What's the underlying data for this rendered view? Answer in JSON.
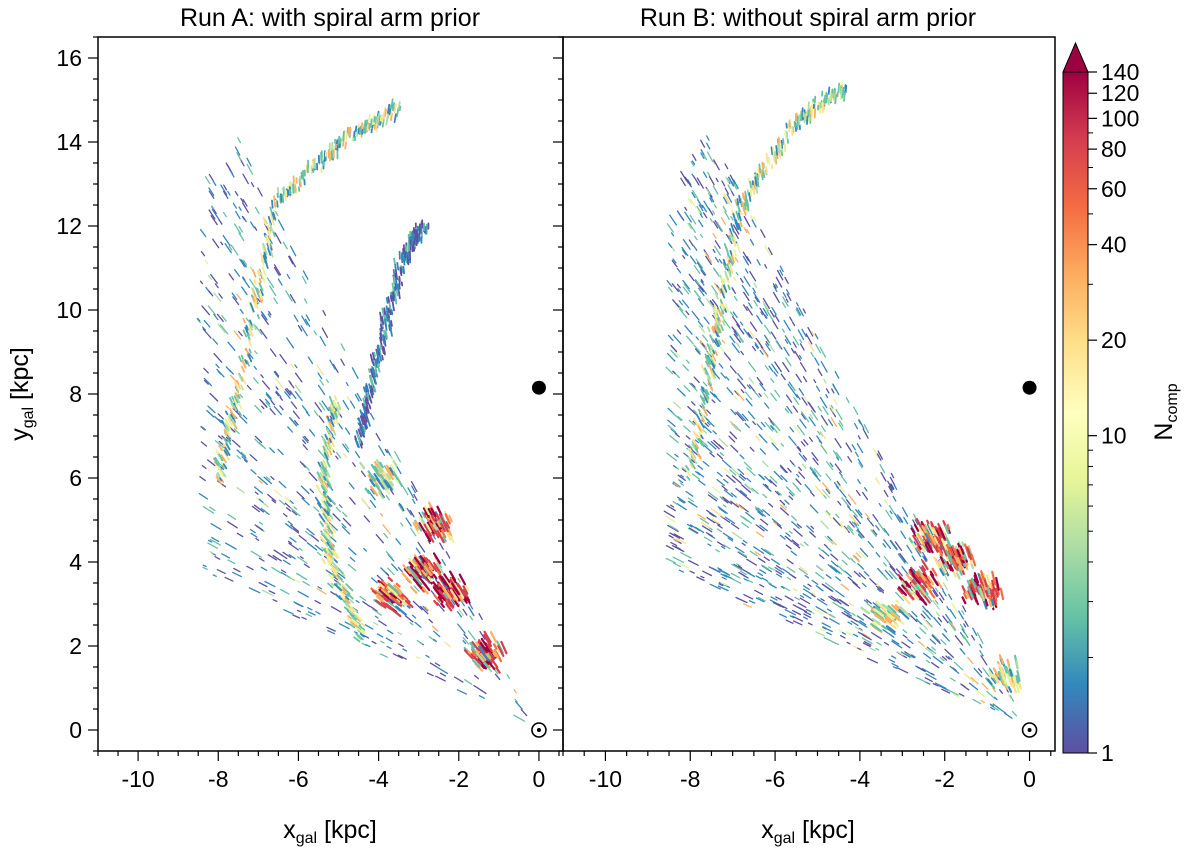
{
  "chart_data": [
    {
      "type": "heatmap",
      "title": "Run A: with spiral arm prior",
      "xlabel_main": "x",
      "xlabel_sub": "gal",
      "xlabel_unit": "[kpc]",
      "ylabel_main": "y",
      "ylabel_sub": "gal",
      "ylabel_unit": "[kpc]",
      "xlim": [
        -11,
        0.6
      ],
      "ylim": [
        -0.5,
        16.5
      ],
      "xticks": [
        -10,
        -8,
        -6,
        -4,
        -2,
        0
      ],
      "xtick_labels": [
        "-10",
        "-8",
        "-6",
        "-4",
        "-2",
        "0"
      ],
      "yticks": [
        0,
        2,
        4,
        6,
        8,
        10,
        12,
        14,
        16
      ],
      "ytick_labels": [
        "0",
        "2",
        "4",
        "6",
        "8",
        "10",
        "12",
        "14",
        "16"
      ],
      "markers": [
        {
          "name": "galactic-center",
          "x": 0,
          "y": 8.15,
          "symbol": "filled-circle"
        },
        {
          "name": "sun",
          "x": 0,
          "y": 0,
          "symbol": "sun-symbol"
        }
      ],
      "features": [
        {
          "kind": "fan",
          "x": [
            -8.5,
            -0.3
          ],
          "y": [
            0,
            14.8
          ],
          "density": "low"
        },
        {
          "kind": "arc",
          "points": [
            [
              -4.4,
              2.2
            ],
            [
              -5.2,
              4.0
            ],
            [
              -5.4,
              6.0
            ],
            [
              -5.1,
              7.8
            ]
          ],
          "density": "medium"
        },
        {
          "kind": "arc",
          "points": [
            [
              -4.5,
              6.8
            ],
            [
              -4.0,
              9.0
            ],
            [
              -3.4,
              11.2
            ],
            [
              -2.9,
              12.0
            ]
          ],
          "density": "low"
        },
        {
          "kind": "arc",
          "points": [
            [
              -8.0,
              6.0
            ],
            [
              -7.3,
              9.0
            ],
            [
              -6.6,
              12.5
            ],
            [
              -5.0,
              14.0
            ],
            [
              -3.5,
              14.8
            ]
          ],
          "density": "medium"
        },
        {
          "kind": "cluster",
          "x": -2.6,
          "y": 4.9,
          "density": "high"
        },
        {
          "kind": "cluster",
          "x": -2.9,
          "y": 3.8,
          "density": "high"
        },
        {
          "kind": "cluster",
          "x": -3.7,
          "y": 3.2,
          "density": "high"
        },
        {
          "kind": "cluster",
          "x": -2.2,
          "y": 3.3,
          "density": "high"
        },
        {
          "kind": "cluster",
          "x": -1.3,
          "y": 1.8,
          "density": "high"
        },
        {
          "kind": "cluster",
          "x": -3.9,
          "y": 6.0,
          "density": "medium"
        }
      ]
    },
    {
      "type": "heatmap",
      "title": "Run B: without spiral arm prior",
      "xlabel_main": "x",
      "xlabel_sub": "gal",
      "xlabel_unit": "[kpc]",
      "xlim": [
        -11,
        0.6
      ],
      "ylim": [
        -0.5,
        16.5
      ],
      "xticks": [
        -10,
        -8,
        -6,
        -4,
        -2,
        0
      ],
      "xtick_labels": [
        "-10",
        "-8",
        "-6",
        "-4",
        "-2",
        "0"
      ],
      "yticks": [
        0,
        2,
        4,
        6,
        8,
        10,
        12,
        14,
        16
      ],
      "markers": [
        {
          "name": "galactic-center",
          "x": 0,
          "y": 8.15,
          "symbol": "filled-circle"
        },
        {
          "name": "sun",
          "x": 0,
          "y": 0,
          "symbol": "sun-symbol"
        }
      ],
      "features": [
        {
          "kind": "fan",
          "x": [
            -8.5,
            -0.3
          ],
          "y": [
            0,
            16.2
          ],
          "density": "medium"
        },
        {
          "kind": "arc",
          "points": [
            [
              -8.0,
              6.0
            ],
            [
              -7.4,
              9.5
            ],
            [
              -6.8,
              12.5
            ],
            [
              -5.5,
              14.5
            ],
            [
              -4.3,
              15.3
            ]
          ],
          "density": "medium"
        },
        {
          "kind": "cluster",
          "x": -2.3,
          "y": 4.6,
          "density": "high"
        },
        {
          "kind": "cluster",
          "x": -1.7,
          "y": 4.1,
          "density": "high"
        },
        {
          "kind": "cluster",
          "x": -1.1,
          "y": 3.3,
          "density": "high"
        },
        {
          "kind": "cluster",
          "x": -2.6,
          "y": 3.5,
          "density": "high"
        },
        {
          "kind": "cluster",
          "x": -3.4,
          "y": 2.7,
          "density": "medium"
        },
        {
          "kind": "cluster",
          "x": -0.6,
          "y": 1.3,
          "density": "medium"
        }
      ]
    }
  ],
  "colorbar": {
    "label_main": "N",
    "label_sub": "comp",
    "scale": "log",
    "min": 1,
    "max": 140,
    "extend": "max",
    "ticks": [
      1,
      10,
      20,
      40,
      60,
      80,
      100,
      120,
      140
    ],
    "tick_labels": [
      "1",
      "10",
      "20",
      "40",
      "60",
      "80",
      "100",
      "120",
      "140"
    ],
    "colormap": [
      "#5e4fa2",
      "#3288bd",
      "#66c2a5",
      "#abdda4",
      "#e6f598",
      "#ffffbf",
      "#fee08b",
      "#fdae61",
      "#f46d43",
      "#d53e4f",
      "#9e0142"
    ]
  }
}
